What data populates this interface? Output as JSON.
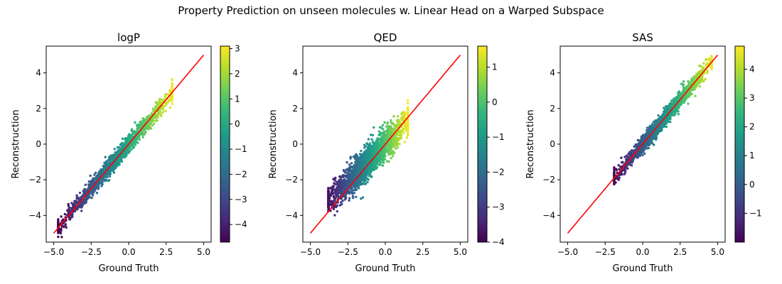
{
  "suptitle": "Property Prediction on unseen molecules w. Linear Head on a Warped Subspace",
  "chart_data": [
    {
      "type": "scatter",
      "title": "logP",
      "xlabel": "Ground Truth",
      "ylabel": "Reconstruction",
      "xlim": [
        -5.5,
        5.5
      ],
      "ylim": [
        -5.5,
        5.5
      ],
      "xticks": [
        -5.0,
        -2.5,
        0.0,
        2.5,
        5.0
      ],
      "xtick_labels": [
        "−5.0",
        "−2.5",
        "0.0",
        "2.5",
        "5.0"
      ],
      "yticks": [
        -4,
        -2,
        0,
        2,
        4
      ],
      "ytick_labels": [
        "−4",
        "−2",
        "0",
        "2",
        "4"
      ],
      "colorbar": {
        "range": [
          -4.7,
          3.1
        ],
        "ticks": [
          -4,
          -3,
          -2,
          -1,
          0,
          1,
          2,
          3
        ],
        "tick_labels": [
          "−4",
          "−3",
          "−2",
          "−1",
          "0",
          "1",
          "2",
          "3"
        ],
        "colormap": "viridis"
      },
      "reference_line": {
        "from": [
          -5,
          -5
        ],
        "to": [
          5,
          5
        ],
        "color": "#ff0000"
      },
      "points": {
        "count": 1500,
        "x_range": [
          -4.7,
          2.9
        ],
        "slope": 1.0,
        "noise": 0.25,
        "color_scale": 1.0,
        "color_offset": 0.0
      }
    },
    {
      "type": "scatter",
      "title": "QED",
      "xlabel": "Ground Truth",
      "ylabel": "Reconstruction",
      "xlim": [
        -5.5,
        5.5
      ],
      "ylim": [
        -5.5,
        5.5
      ],
      "xticks": [
        -5.0,
        -2.5,
        0.0,
        2.5,
        5.0
      ],
      "xtick_labels": [
        "−5.0",
        "−2.5",
        "0.0",
        "2.5",
        "5.0"
      ],
      "yticks": [
        -4,
        -2,
        0,
        2,
        4
      ],
      "ytick_labels": [
        "−4",
        "−2",
        "0",
        "2",
        "4"
      ],
      "colorbar": {
        "range": [
          -4.0,
          1.6
        ],
        "ticks": [
          -4,
          -3,
          -2,
          -1,
          0,
          1
        ],
        "tick_labels": [
          "−4",
          "−3",
          "−2",
          "−1",
          "0",
          "1"
        ],
        "colormap": "viridis"
      },
      "reference_line": {
        "from": [
          -5,
          -5
        ],
        "to": [
          5,
          5
        ],
        "color": "#ff0000"
      },
      "points": {
        "count": 2200,
        "x_range": [
          -3.8,
          1.5
        ],
        "slope": 0.85,
        "noise": 0.42,
        "color_scale": 1.0,
        "color_offset": 0.0
      }
    },
    {
      "type": "scatter",
      "title": "SAS",
      "xlabel": "Ground Truth",
      "ylabel": "Reconstruction",
      "xlim": [
        -5.5,
        5.5
      ],
      "ylim": [
        -5.5,
        5.5
      ],
      "xticks": [
        -5.0,
        -2.5,
        0.0,
        2.5,
        5.0
      ],
      "xtick_labels": [
        "−5.0",
        "−2.5",
        "0.0",
        "2.5",
        "5.0"
      ],
      "yticks": [
        -4,
        -2,
        0,
        2,
        4
      ],
      "ytick_labels": [
        "−4",
        "−2",
        "0",
        "2",
        "4"
      ],
      "colorbar": {
        "range": [
          -2.0,
          4.8
        ],
        "ticks": [
          -1,
          0,
          1,
          2,
          3,
          4
        ],
        "tick_labels": [
          "−1",
          "0",
          "1",
          "2",
          "3",
          "4"
        ],
        "colormap": "viridis"
      },
      "reference_line": {
        "from": [
          -5,
          -5
        ],
        "to": [
          5,
          5
        ],
        "color": "#ff0000"
      },
      "points": {
        "count": 2000,
        "x_range": [
          -1.9,
          4.6
        ],
        "slope": 1.0,
        "noise": 0.22,
        "color_scale": 1.0,
        "color_offset": 0.0
      }
    }
  ]
}
